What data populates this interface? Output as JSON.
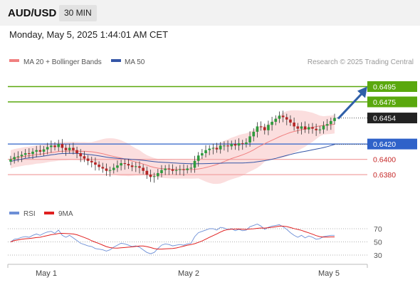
{
  "header": {
    "pair": "AUD/USD",
    "timeframe": "30 MIN",
    "timestamp": "Monday, May 5, 2025 1:44:01 AM CET"
  },
  "colors": {
    "up": "#2e9b3c",
    "down": "#b52525",
    "bands": "#f7c2c2",
    "ma20": "#f08080",
    "ma50": "#3556a7",
    "resistance": "#5aa80e",
    "support_line": "#f2a3a3",
    "support_blue": "#2f62c9",
    "current": "#222222",
    "rsi": "#6d8fd6",
    "rsi_ma": "#e02020",
    "arrow": "#2f5fa8"
  },
  "chart_data": [
    {
      "type": "candlestick",
      "title": "AUD/USD",
      "legend": [
        {
          "name": "MA 20 + Bollinger Bands",
          "color": "#f08080"
        },
        {
          "name": "MA 50",
          "color": "#3556a7"
        }
      ],
      "watermark": "Research © 2025 Trading Central",
      "x_ticks": [
        "May 1",
        "May 2",
        "May 5"
      ],
      "ylim": [
        0.6355,
        0.6515
      ],
      "levels": [
        {
          "label": "0.6495",
          "value": 0.6495,
          "kind": "resistance"
        },
        {
          "label": "0.6475",
          "value": 0.6475,
          "kind": "resistance"
        },
        {
          "label": "0.6454",
          "value": 0.6454,
          "kind": "current"
        },
        {
          "label": "0.6420",
          "value": 0.642,
          "kind": "pivot"
        },
        {
          "label": "0.6400",
          "value": 0.64,
          "kind": "support"
        },
        {
          "label": "0.6380",
          "value": 0.638,
          "kind": "support"
        }
      ],
      "closes": [
        0.64,
        0.6403,
        0.6404,
        0.6406,
        0.6408,
        0.6407,
        0.641,
        0.6412,
        0.641,
        0.6413,
        0.6416,
        0.6418,
        0.6416,
        0.642,
        0.6415,
        0.6412,
        0.6415,
        0.6412,
        0.6408,
        0.6404,
        0.6401,
        0.6398,
        0.6396,
        0.6393,
        0.639,
        0.6388,
        0.6385,
        0.6386,
        0.6389,
        0.6392,
        0.6395,
        0.6394,
        0.6392,
        0.639,
        0.6391,
        0.6389,
        0.6385,
        0.638,
        0.6377,
        0.6378,
        0.6382,
        0.6386,
        0.6388,
        0.6387,
        0.6385,
        0.6386,
        0.6387,
        0.6386,
        0.6388,
        0.6389,
        0.6398,
        0.6405,
        0.6408,
        0.6412,
        0.6414,
        0.6415,
        0.6413,
        0.6418,
        0.6418,
        0.6417,
        0.642,
        0.6418,
        0.6421,
        0.642,
        0.6422,
        0.643,
        0.6436,
        0.6443,
        0.6442,
        0.6438,
        0.6445,
        0.6449,
        0.6453,
        0.6457,
        0.6455,
        0.6452,
        0.6448,
        0.6443,
        0.644,
        0.6443,
        0.6439,
        0.6442,
        0.644,
        0.6438,
        0.6439,
        0.6444,
        0.6446,
        0.645,
        0.6454
      ],
      "series": [
        {
          "name": "MA 20 + Bollinger Bands",
          "kind": "bands"
        },
        {
          "name": "MA 50",
          "kind": "ma",
          "period": 50
        }
      ]
    },
    {
      "type": "line",
      "title": "",
      "legend": [
        {
          "name": "RSI",
          "color": "#6d8fd6"
        },
        {
          "name": "9MA",
          "color": "#e02020"
        }
      ],
      "ylim": [
        20,
        80
      ],
      "y_ticks": [
        70,
        50,
        30
      ],
      "rsi_values": [
        50,
        54,
        55,
        57,
        58,
        57,
        60,
        62,
        60,
        63,
        65,
        66,
        63,
        68,
        60,
        57,
        60,
        56,
        52,
        48,
        46,
        44,
        43,
        40,
        39,
        38,
        36,
        38,
        42,
        45,
        48,
        47,
        45,
        43,
        44,
        42,
        38,
        34,
        32,
        34,
        40,
        45,
        47,
        46,
        44,
        45,
        46,
        45,
        47,
        48,
        58,
        64,
        66,
        68,
        70,
        70,
        68,
        72,
        71,
        69,
        70,
        67,
        69,
        67,
        68,
        73,
        75,
        77,
        74,
        69,
        72,
        74,
        75,
        76,
        73,
        69,
        64,
        60,
        57,
        60,
        56,
        59,
        57,
        54,
        55,
        58,
        59,
        60,
        60
      ]
    }
  ]
}
